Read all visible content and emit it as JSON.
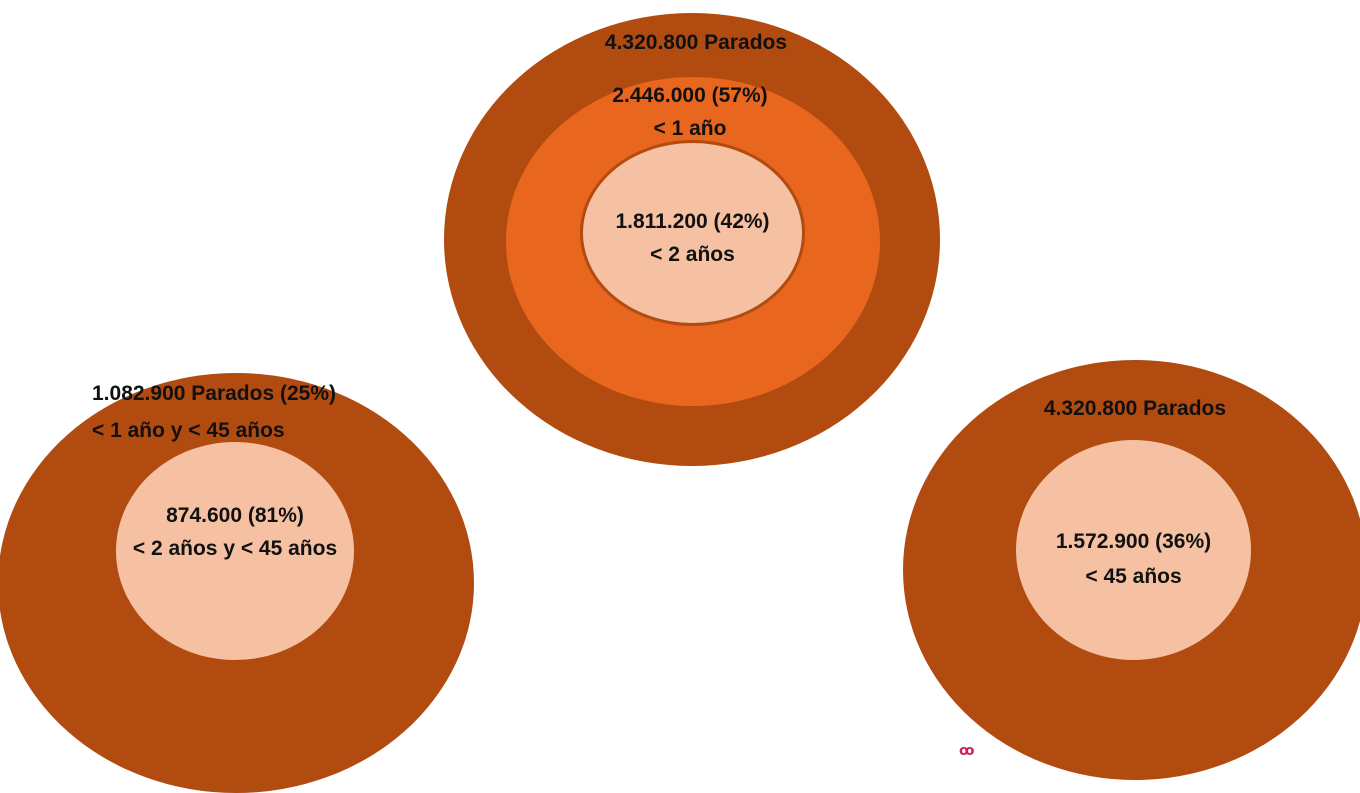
{
  "top_group": {
    "outer_label": "4.320.800 Parados",
    "middle_line1": "2.446.000 (57%)",
    "middle_line2": "< 1 año",
    "inner_line1": "1.811.200 (42%)",
    "inner_line2": "< 2 años"
  },
  "left_group": {
    "outer_line1": "1.082.900 Parados (25%)",
    "outer_line2": "< 1 año y < 45 años",
    "inner_line1": "874.600 (81%)",
    "inner_line2": "< 2 años y < 45 años"
  },
  "right_group": {
    "outer_label": "4.320.800 Parados",
    "inner_line1": "1.572.900 (36%)",
    "inner_line2": "< 45 años"
  },
  "colors": {
    "outer": "#b14b10",
    "middle": "#e8661e",
    "inner": "#f5c1a2"
  }
}
